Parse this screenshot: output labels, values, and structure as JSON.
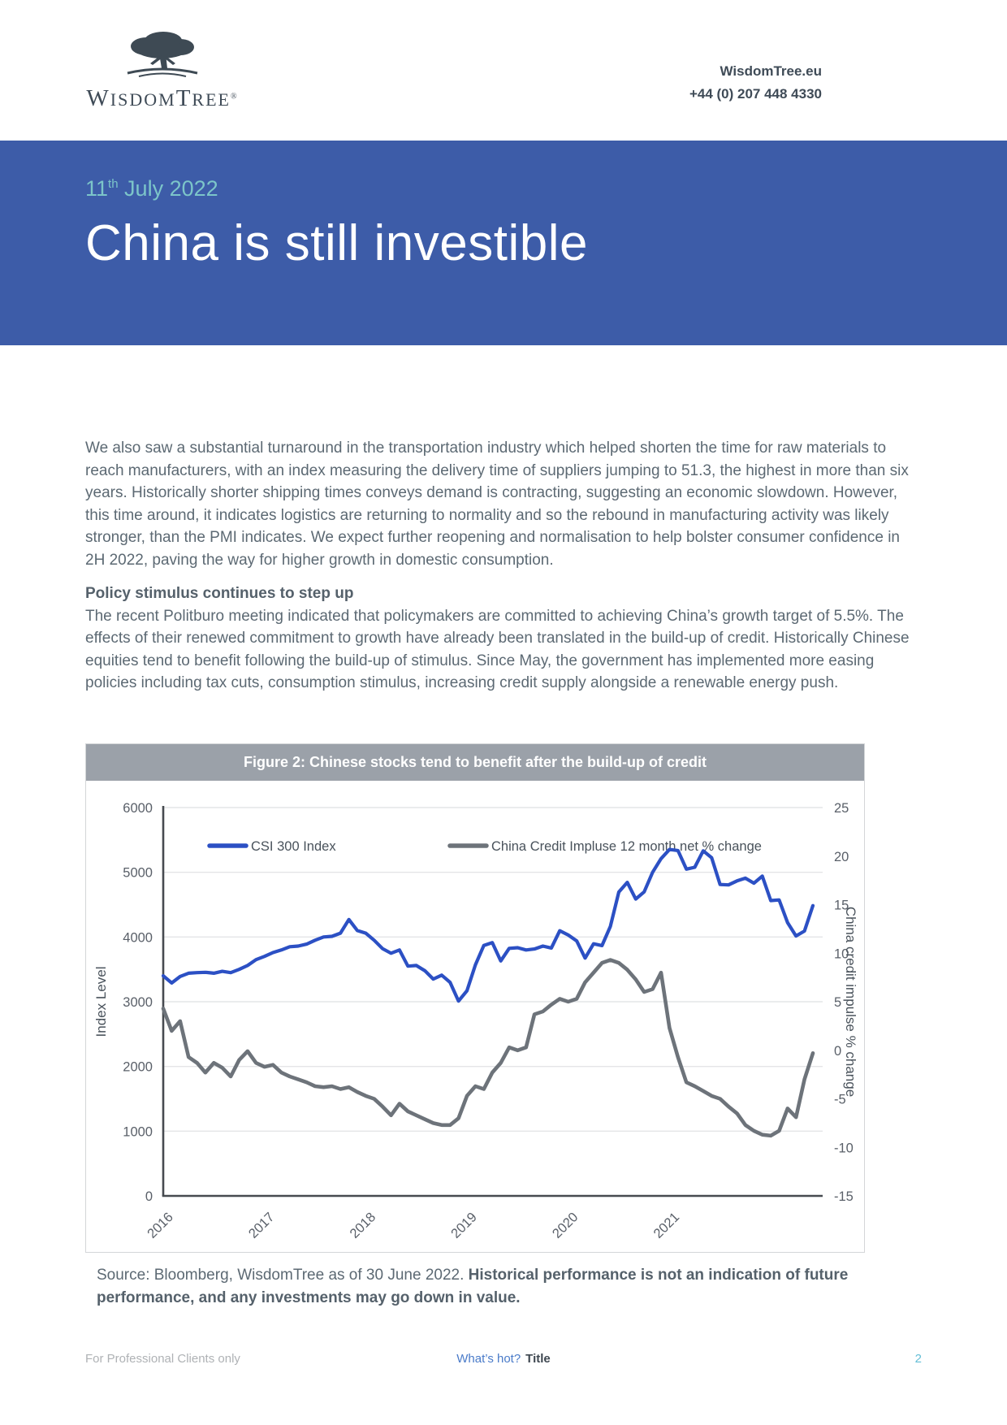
{
  "header": {
    "logo_w": "W",
    "logo_isdom": "ISDOM",
    "logo_t": "T",
    "logo_ree": "REE",
    "logo_reg": "®",
    "website": "WisdomTree.eu",
    "phone": "+44 (0) 207 448 4330"
  },
  "banner": {
    "bg_color": "#3D5CA8",
    "date_color": "#7CC5C9",
    "date_prefix": "11",
    "date_sup": "th",
    "date_rest": " July 2022",
    "title": "China is still investible"
  },
  "article": {
    "paragraph1": "We also saw a substantial turnaround in the transportation industry which helped shorten the time for raw materials to reach manufacturers, with an index measuring the delivery time of suppliers jumping to 51.3, the highest in more than six years. Historically shorter shipping times conveys demand is contracting, suggesting an economic slowdown. However, this time around, it indicates logistics are returning to normality and so the rebound in manufacturing activity was likely stronger, than the PMI indicates.  We expect further reopening and normalisation to help bolster consumer confidence in 2H 2022, paving the way for higher growth in domestic consumption.",
    "heading": "Policy stimulus continues to step up",
    "paragraph2": "The recent Politburo meeting indicated that policymakers are committed to achieving China’s growth target of 5.5%. The effects of their renewed commitment to growth have already been translated in the build-up of credit. Historically Chinese equities tend to benefit following the build-up of stimulus. Since May, the government has implemented more easing policies including tax cuts, consumption stimulus, increasing credit supply alongside a renewable energy push."
  },
  "figure": {
    "title": "Figure 2: Chinese stocks tend to benefit after the build-up of credit",
    "source_normal": "Source: Bloomberg, WisdomTree as of 30 June 2022. ",
    "source_bold": "Historical performance is not an indication of future performance, and any investments may go down in value."
  },
  "chart_data": {
    "type": "line",
    "title": "Figure 2: Chinese stocks tend to benefit after the build-up of credit",
    "x_months_start": "2016-01",
    "x_months_end": "2022-06",
    "x_tick_labels": [
      "2016",
      "2017",
      "2018",
      "2019",
      "2020",
      "2021"
    ],
    "grid": "horizontal",
    "legend_position": "top-center",
    "left_axis": {
      "label": "Index Level",
      "min": 0,
      "max": 6000,
      "ticks": [
        0,
        1000,
        2000,
        3000,
        4000,
        5000,
        6000
      ]
    },
    "right_axis": {
      "label": "China credit impulse % change",
      "min": -15,
      "max": 25,
      "ticks": [
        -15,
        -10,
        -5,
        0,
        5,
        10,
        15,
        20,
        25
      ]
    },
    "series": [
      {
        "name": "CSI 300 Index",
        "axis": "left",
        "color": "#2C50C4",
        "values": [
          3400,
          3290,
          3390,
          3440,
          3450,
          3455,
          3440,
          3470,
          3450,
          3500,
          3560,
          3650,
          3700,
          3760,
          3800,
          3850,
          3860,
          3890,
          3950,
          4000,
          4010,
          4060,
          4270,
          4100,
          4060,
          3950,
          3820,
          3750,
          3800,
          3550,
          3560,
          3480,
          3350,
          3410,
          3300,
          3010,
          3170,
          3570,
          3870,
          3913,
          3630,
          3825,
          3835,
          3800,
          3815,
          3860,
          3830,
          4097,
          4030,
          3940,
          3674,
          3895,
          3867,
          4164,
          4695,
          4844,
          4587,
          4697,
          5000,
          5211,
          5352,
          5336,
          5048,
          5078,
          5331,
          5224,
          4811,
          4805,
          4866,
          4909,
          4832,
          4940,
          4563,
          4573,
          4223,
          4016,
          4092,
          4485
        ]
      },
      {
        "name": "China Credit Impluse 12 month net % change",
        "axis": "right",
        "color": "#6D737A",
        "values": [
          4.3,
          2.0,
          3.0,
          -0.7,
          -1.3,
          -2.3,
          -1.3,
          -1.8,
          -2.7,
          -1.0,
          -0.1,
          -1.3,
          -1.7,
          -1.5,
          -2.3,
          -2.7,
          -3.0,
          -3.3,
          -3.7,
          -3.8,
          -3.7,
          -4.0,
          -3.8,
          -4.3,
          -4.7,
          -5.0,
          -5.8,
          -6.7,
          -5.5,
          -6.3,
          -6.7,
          -7.1,
          -7.5,
          -7.7,
          -7.7,
          -7.0,
          -4.7,
          -3.7,
          -4.0,
          -2.3,
          -1.3,
          0.3,
          0.0,
          0.3,
          3.7,
          4.0,
          4.7,
          5.3,
          5.0,
          5.3,
          7.0,
          8.0,
          9.0,
          9.3,
          9.0,
          8.3,
          7.3,
          6.0,
          6.3,
          8.0,
          2.3,
          -0.7,
          -3.3,
          -3.7,
          -4.2,
          -4.7,
          -5.0,
          -5.8,
          -6.5,
          -7.7,
          -8.3,
          -8.7,
          -8.8,
          -8.3,
          -6.0,
          -6.9,
          -3.0,
          -0.3
        ]
      }
    ]
  },
  "footer": {
    "left": "For Professional Clients only",
    "center_link": "What’s hot?",
    "center_title": "Title",
    "page": "2"
  }
}
